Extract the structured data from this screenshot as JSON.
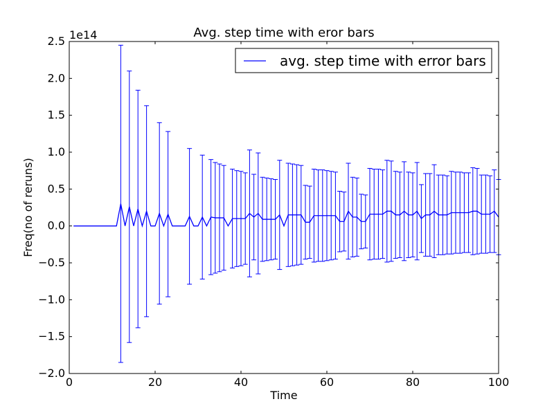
{
  "colors": {
    "series": "#0000ff",
    "axes": "#000000",
    "background": "#ffffff"
  },
  "chart_data": {
    "type": "line",
    "title": "Avg. step time with eror bars",
    "xlabel": "Time",
    "ylabel": "Freq(no of reruns)",
    "y_offset_label": "1e14",
    "y_scale": 100000000000000.0,
    "xlim": [
      0,
      100
    ],
    "ylim": [
      -2.0,
      2.5
    ],
    "x_ticks": [
      0,
      20,
      40,
      60,
      80,
      100
    ],
    "x_tick_labels": [
      "0",
      "20",
      "40",
      "60",
      "80",
      "100"
    ],
    "y_ticks": [
      -2.0,
      -1.5,
      -1.0,
      -0.5,
      0.0,
      0.5,
      1.0,
      1.5,
      2.0,
      2.5
    ],
    "y_tick_labels": [
      "−2.0",
      "−1.5",
      "−1.0",
      "−0.5",
      "0.0",
      "0.5",
      "1.0",
      "1.5",
      "2.0",
      "2.5"
    ],
    "grid": false,
    "legend": {
      "placement": "upper right",
      "entries": [
        "avg. step time with error bars"
      ]
    },
    "series": [
      {
        "name": "avg. step time with error bars",
        "color": "#0000ff",
        "x": [
          1,
          2,
          3,
          4,
          5,
          6,
          7,
          8,
          9,
          10,
          11,
          12,
          13,
          14,
          15,
          16,
          17,
          18,
          19,
          20,
          21,
          22,
          23,
          24,
          25,
          26,
          27,
          28,
          29,
          30,
          31,
          32,
          33,
          34,
          35,
          36,
          37,
          38,
          39,
          40,
          41,
          42,
          43,
          44,
          45,
          46,
          47,
          48,
          49,
          50,
          51,
          52,
          53,
          54,
          55,
          56,
          57,
          58,
          59,
          60,
          61,
          62,
          63,
          64,
          65,
          66,
          67,
          68,
          69,
          70,
          71,
          72,
          73,
          74,
          75,
          76,
          77,
          78,
          79,
          80,
          81,
          82,
          83,
          84,
          85,
          86,
          87,
          88,
          89,
          90,
          91,
          92,
          93,
          94,
          95,
          96,
          97,
          98,
          99,
          100
        ],
        "y": [
          0,
          0,
          0,
          0,
          0,
          0,
          0,
          0,
          0,
          0,
          0,
          0.3,
          0,
          0.26,
          0,
          0.23,
          0,
          0.2,
          0,
          0,
          0.17,
          0,
          0.16,
          0,
          0,
          0,
          0,
          0.13,
          0,
          0,
          0.12,
          0,
          0.12,
          0.11,
          0.11,
          0.11,
          0,
          0.1,
          0.1,
          0.1,
          0.1,
          0.17,
          0.12,
          0.17,
          0.09,
          0.09,
          0.09,
          0.09,
          0.15,
          0,
          0.15,
          0.15,
          0.15,
          0.15,
          0.05,
          0.05,
          0.14,
          0.14,
          0.14,
          0.14,
          0.14,
          0.14,
          0.06,
          0.06,
          0.2,
          0.12,
          0.12,
          0.06,
          0.06,
          0.16,
          0.16,
          0.16,
          0.16,
          0.2,
          0.2,
          0.15,
          0.15,
          0.2,
          0.15,
          0.15,
          0.2,
          0.1,
          0.15,
          0.15,
          0.2,
          0.15,
          0.15,
          0.15,
          0.18,
          0.18,
          0.18,
          0.18,
          0.18,
          0.2,
          0.2,
          0.16,
          0.16,
          0.16,
          0.2,
          0.12
        ],
        "err": [
          0,
          0,
          0,
          0,
          0,
          0,
          0,
          0,
          0,
          0,
          0,
          2.15,
          0,
          1.84,
          0,
          1.61,
          0,
          1.43,
          0,
          0,
          1.23,
          0,
          1.12,
          0,
          0,
          0,
          0,
          0.92,
          0,
          0,
          0.84,
          0,
          0.78,
          0.75,
          0.73,
          0.71,
          0,
          0.67,
          0.65,
          0.64,
          0.62,
          0.86,
          0.58,
          0.82,
          0.57,
          0.56,
          0.55,
          0.54,
          0.74,
          0,
          0.7,
          0.69,
          0.68,
          0.67,
          0.5,
          0.49,
          0.63,
          0.62,
          0.62,
          0.61,
          0.6,
          0.59,
          0.41,
          0.4,
          0.65,
          0.54,
          0.53,
          0.37,
          0.36,
          0.62,
          0.61,
          0.61,
          0.6,
          0.69,
          0.68,
          0.59,
          0.58,
          0.67,
          0.58,
          0.57,
          0.66,
          0.46,
          0.56,
          0.56,
          0.63,
          0.54,
          0.54,
          0.53,
          0.56,
          0.55,
          0.55,
          0.54,
          0.54,
          0.59,
          0.58,
          0.53,
          0.53,
          0.52,
          0.56,
          0.51
        ]
      }
    ]
  }
}
